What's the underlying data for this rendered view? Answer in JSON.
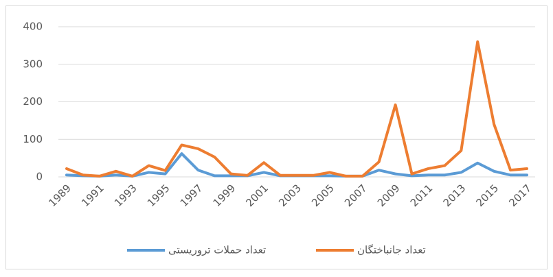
{
  "chart_data": {
    "type": "line",
    "categories": [
      "1989",
      null,
      "1991",
      null,
      "1993",
      null,
      "1995",
      null,
      "1997",
      null,
      "1999",
      null,
      "2001",
      null,
      "2003",
      null,
      "2005",
      null,
      "2007",
      null,
      "2009",
      null,
      "2011",
      null,
      "2013",
      null,
      "2015",
      null,
      "2017"
    ],
    "series": [
      {
        "name": "تعداد حملات تروریستی",
        "color": "#5b9bd5",
        "values": [
          5,
          3,
          2,
          5,
          2,
          12,
          8,
          62,
          18,
          3,
          3,
          3,
          12,
          3,
          3,
          3,
          3,
          2,
          2,
          18,
          8,
          3,
          5,
          5,
          12,
          37,
          15,
          5,
          5
        ]
      },
      {
        "name": "تعداد جانباختگان",
        "color": "#ed7d31",
        "values": [
          22,
          5,
          2,
          15,
          2,
          30,
          17,
          85,
          75,
          53,
          8,
          4,
          38,
          4,
          4,
          4,
          12,
          2,
          2,
          40,
          192,
          8,
          22,
          30,
          70,
          360,
          140,
          18,
          22
        ]
      }
    ],
    "ylim": [
      0,
      400
    ],
    "yticks": [
      0,
      100,
      200,
      300,
      400
    ],
    "grid": true,
    "legend": "bottom"
  }
}
